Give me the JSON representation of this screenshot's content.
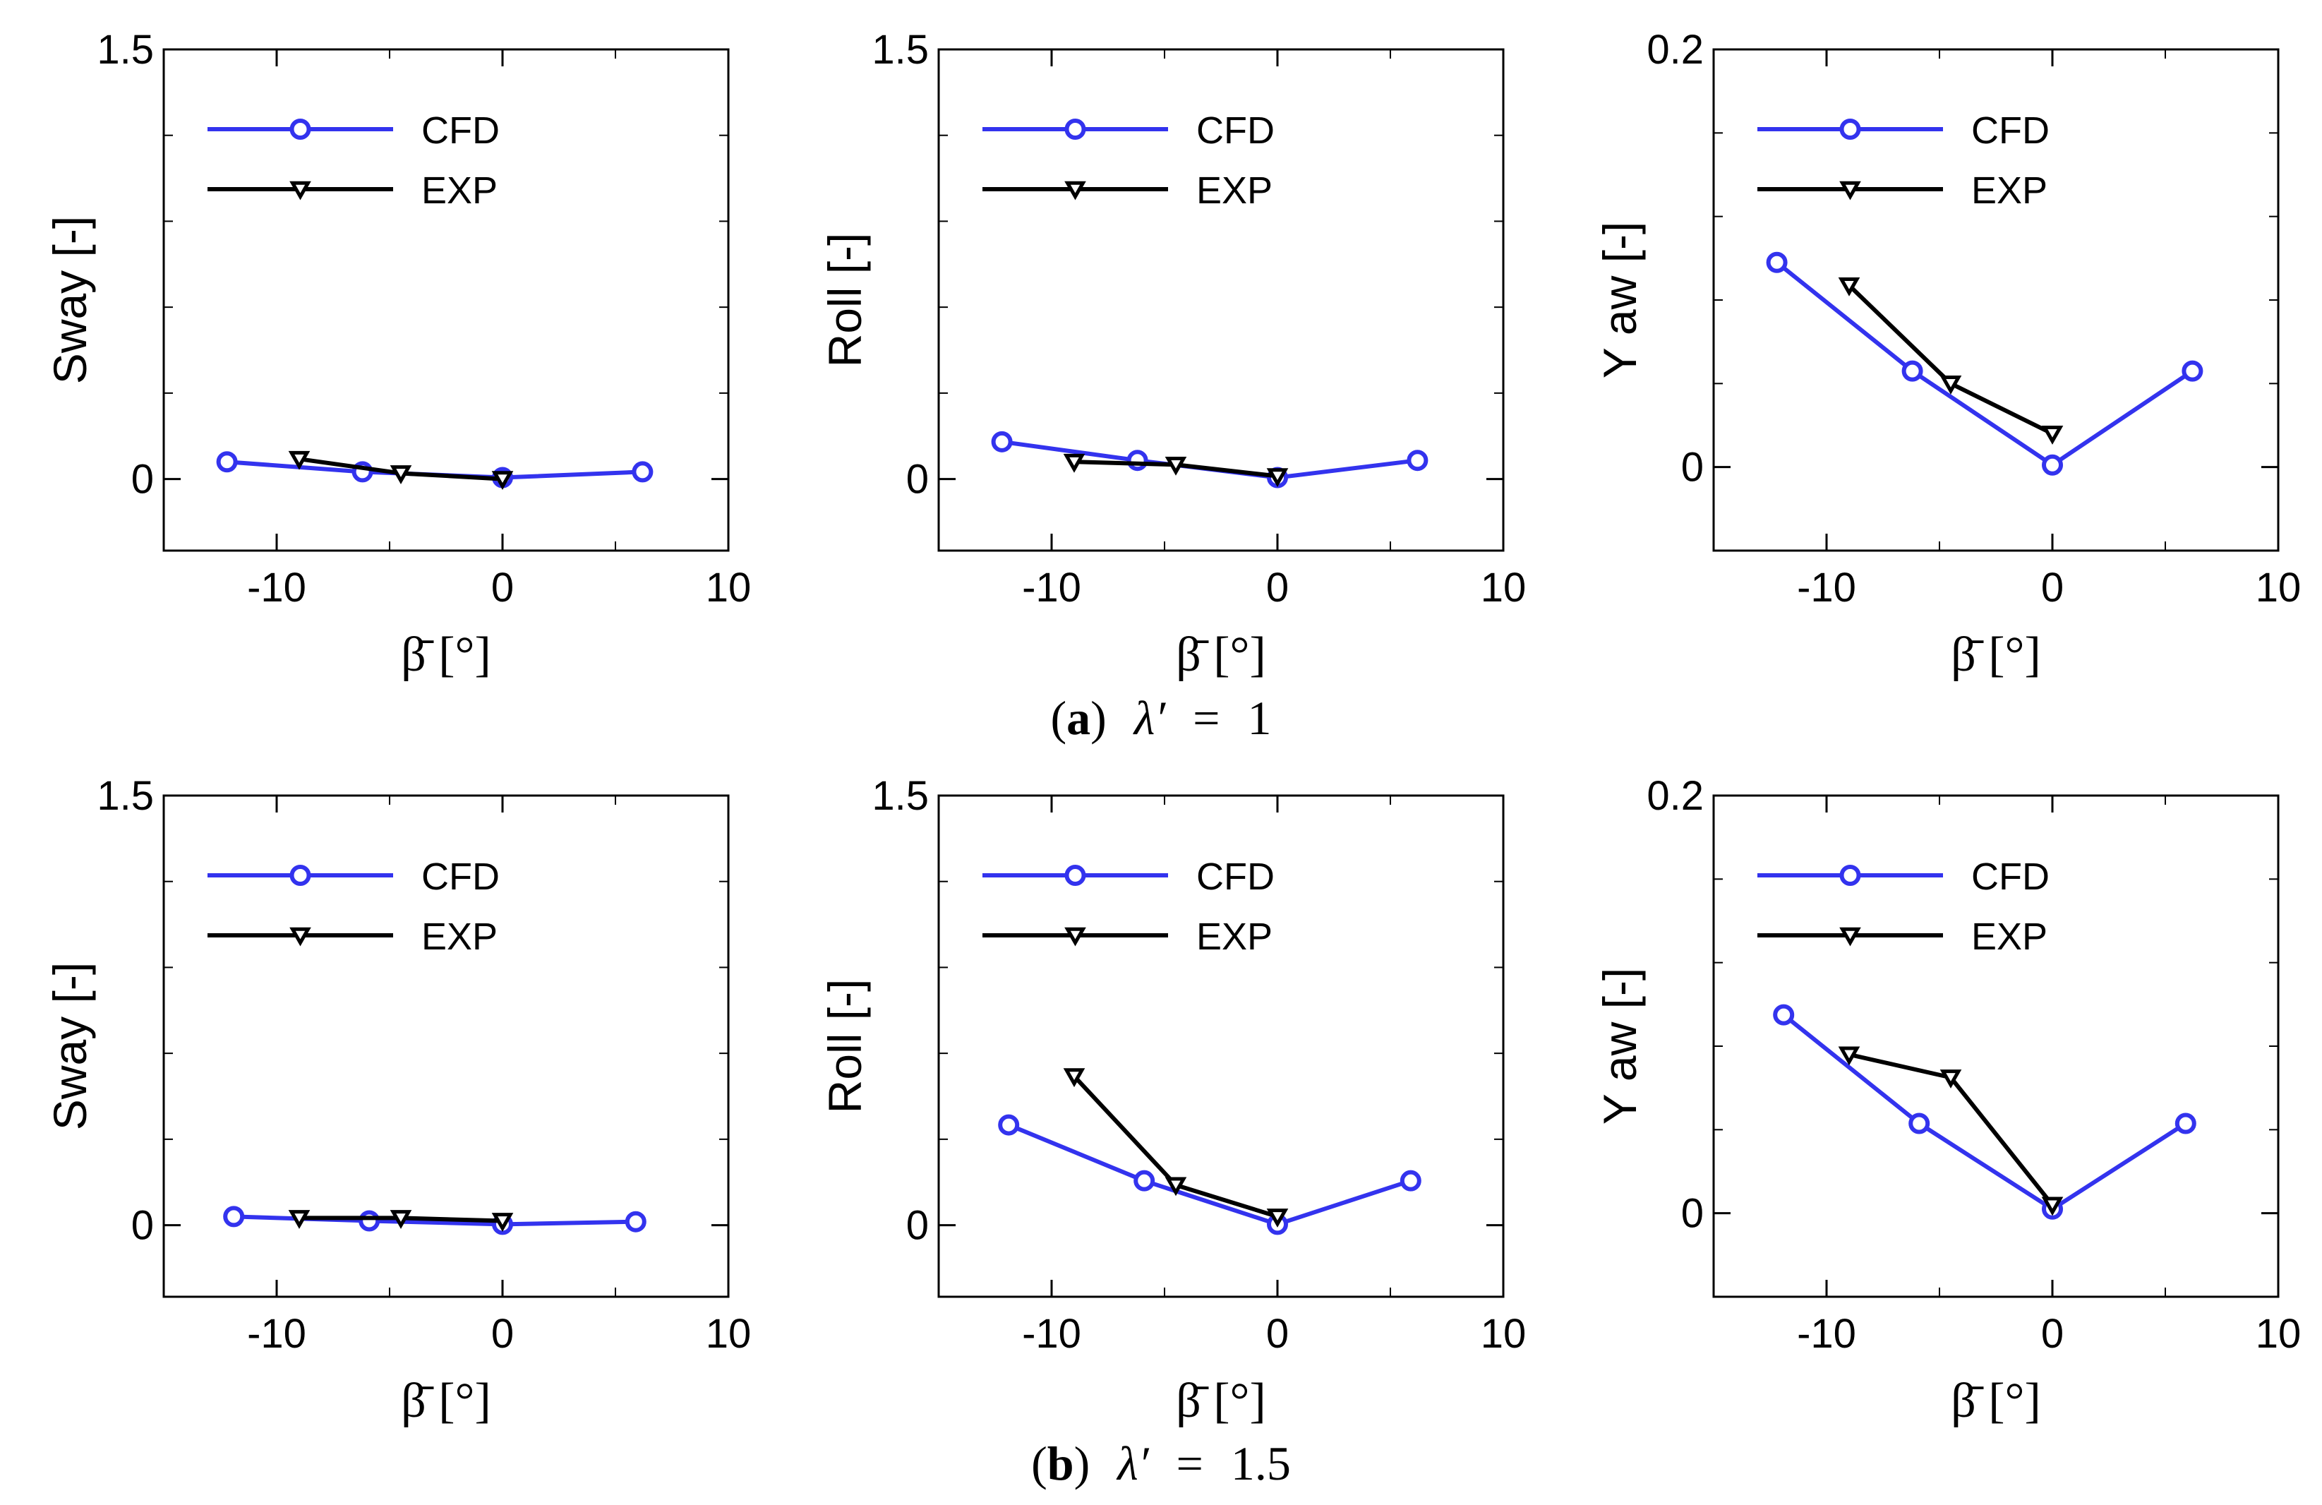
{
  "chart_data": [
    {
      "type": "line",
      "panel_row": "a",
      "title": "",
      "xlabel": "β̄ [°]",
      "ylabel": "Sway [-]",
      "xlim": [
        -15,
        10
      ],
      "ylim": [
        -0.25,
        1.5
      ],
      "xticks": [
        -10,
        0,
        10
      ],
      "xtick_labels": [
        "-10",
        "0",
        "10"
      ],
      "yticks": [
        0,
        1.5
      ],
      "ytick_labels": [
        "0",
        "1.5"
      ],
      "yminor_ticks": [
        0.3,
        0.6,
        0.9,
        1.2
      ],
      "legend": "top-left",
      "series": [
        {
          "name": "CFD",
          "color": "#3333ee",
          "marker": "circle",
          "x": [
            -12.2,
            -6.2,
            0,
            6.2
          ],
          "y": [
            0.06,
            0.025,
            0.005,
            0.025
          ]
        },
        {
          "name": "EXP",
          "color": "#000000",
          "marker": "triangle-down",
          "x": [
            -9,
            -4.5,
            0
          ],
          "y": [
            0.07,
            0.02,
            0.0
          ]
        }
      ]
    },
    {
      "type": "line",
      "panel_row": "a",
      "title": "",
      "xlabel": "β̄ [°]",
      "ylabel": "Roll [-]",
      "xlim": [
        -15,
        10
      ],
      "ylim": [
        -0.25,
        1.5
      ],
      "xticks": [
        -10,
        0,
        10
      ],
      "xtick_labels": [
        "-10",
        "0",
        "10"
      ],
      "yticks": [
        0,
        1.5
      ],
      "ytick_labels": [
        "0",
        "1.5"
      ],
      "yminor_ticks": [
        0.3,
        0.6,
        0.9,
        1.2
      ],
      "legend": "top-left",
      "series": [
        {
          "name": "CFD",
          "color": "#3333ee",
          "marker": "circle",
          "x": [
            -12.2,
            -6.2,
            0,
            6.2
          ],
          "y": [
            0.13,
            0.065,
            0.005,
            0.065
          ]
        },
        {
          "name": "EXP",
          "color": "#000000",
          "marker": "triangle-down",
          "x": [
            -9,
            -4.5,
            0
          ],
          "y": [
            0.06,
            0.05,
            0.01
          ]
        }
      ]
    },
    {
      "type": "line",
      "panel_row": "a",
      "title": "",
      "xlabel": "β̄ [°]",
      "ylabel": "Y aw [-]",
      "xlim": [
        -15,
        10
      ],
      "ylim": [
        -0.04,
        0.2
      ],
      "xticks": [
        -10,
        0,
        10
      ],
      "xtick_labels": [
        "-10",
        "0",
        "10"
      ],
      "yticks": [
        0,
        0.2
      ],
      "ytick_labels": [
        "0",
        "0.2"
      ],
      "yminor_ticks": [
        0.04,
        0.08,
        0.12,
        0.16
      ],
      "legend": "top-left",
      "series": [
        {
          "name": "CFD",
          "color": "#3333ee",
          "marker": "circle",
          "x": [
            -12.2,
            -6.2,
            0,
            6.2
          ],
          "y": [
            0.098,
            0.046,
            0.001,
            0.046
          ]
        },
        {
          "name": "EXP",
          "color": "#000000",
          "marker": "triangle-down",
          "x": [
            -9,
            -4.5,
            0
          ],
          "y": [
            0.087,
            0.04,
            0.016
          ]
        }
      ]
    },
    {
      "type": "line",
      "panel_row": "b",
      "title": "",
      "xlabel": "β̄ [°]",
      "ylabel": "Sway [-]",
      "xlim": [
        -15,
        10
      ],
      "ylim": [
        -0.25,
        1.5
      ],
      "xticks": [
        -10,
        0,
        10
      ],
      "xtick_labels": [
        "-10",
        "0",
        "10"
      ],
      "yticks": [
        0,
        1.5
      ],
      "ytick_labels": [
        "0",
        "1.5"
      ],
      "yminor_ticks": [
        0.3,
        0.6,
        0.9,
        1.2
      ],
      "legend": "top-left",
      "series": [
        {
          "name": "CFD",
          "color": "#3333ee",
          "marker": "circle",
          "x": [
            -11.9,
            -5.9,
            0,
            5.9
          ],
          "y": [
            0.03,
            0.015,
            0.003,
            0.012
          ]
        },
        {
          "name": "EXP",
          "color": "#000000",
          "marker": "triangle-down",
          "x": [
            -9,
            -4.5,
            0
          ],
          "y": [
            0.025,
            0.025,
            0.015
          ]
        }
      ]
    },
    {
      "type": "line",
      "panel_row": "b",
      "title": "",
      "xlabel": "β̄ [°]",
      "ylabel": "Roll [-]",
      "xlim": [
        -15,
        10
      ],
      "ylim": [
        -0.25,
        1.5
      ],
      "xticks": [
        -10,
        0,
        10
      ],
      "xtick_labels": [
        "-10",
        "0",
        "10"
      ],
      "yticks": [
        0,
        1.5
      ],
      "ytick_labels": [
        "0",
        "1.5"
      ],
      "yminor_ticks": [
        0.3,
        0.6,
        0.9,
        1.2
      ],
      "legend": "top-left",
      "series": [
        {
          "name": "CFD",
          "color": "#3333ee",
          "marker": "circle",
          "x": [
            -11.9,
            -5.9,
            0,
            5.9
          ],
          "y": [
            0.35,
            0.155,
            0.003,
            0.155
          ]
        },
        {
          "name": "EXP",
          "color": "#000000",
          "marker": "triangle-down",
          "x": [
            -9,
            -4.5,
            0
          ],
          "y": [
            0.52,
            0.14,
            0.03
          ]
        }
      ]
    },
    {
      "type": "line",
      "panel_row": "b",
      "title": "",
      "xlabel": "β̄ [°]",
      "ylabel": "Y aw [-]",
      "xlim": [
        -15,
        10
      ],
      "ylim": [
        -0.04,
        0.2
      ],
      "xticks": [
        -10,
        0,
        10
      ],
      "xtick_labels": [
        "-10",
        "0",
        "10"
      ],
      "yticks": [
        0,
        0.2
      ],
      "ytick_labels": [
        "0",
        "0.2"
      ],
      "yminor_ticks": [
        0.04,
        0.08,
        0.12,
        0.16
      ],
      "legend": "top-left",
      "series": [
        {
          "name": "CFD",
          "color": "#3333ee",
          "marker": "circle",
          "x": [
            -11.9,
            -5.9,
            0,
            5.9
          ],
          "y": [
            0.095,
            0.043,
            0.002,
            0.043
          ]
        },
        {
          "name": "EXP",
          "color": "#000000",
          "marker": "triangle-down",
          "x": [
            -9,
            -4.5,
            0
          ],
          "y": [
            0.076,
            0.065,
            0.004
          ]
        }
      ]
    }
  ],
  "captions": {
    "a": {
      "letter": "a",
      "open": "(",
      "close": ")",
      "lambda": "λ′",
      "equals": "=",
      "value": "1"
    },
    "b": {
      "letter": "b",
      "open": "(",
      "close": ")",
      "lambda": "λ′",
      "equals": "=",
      "value": "1.5"
    }
  }
}
